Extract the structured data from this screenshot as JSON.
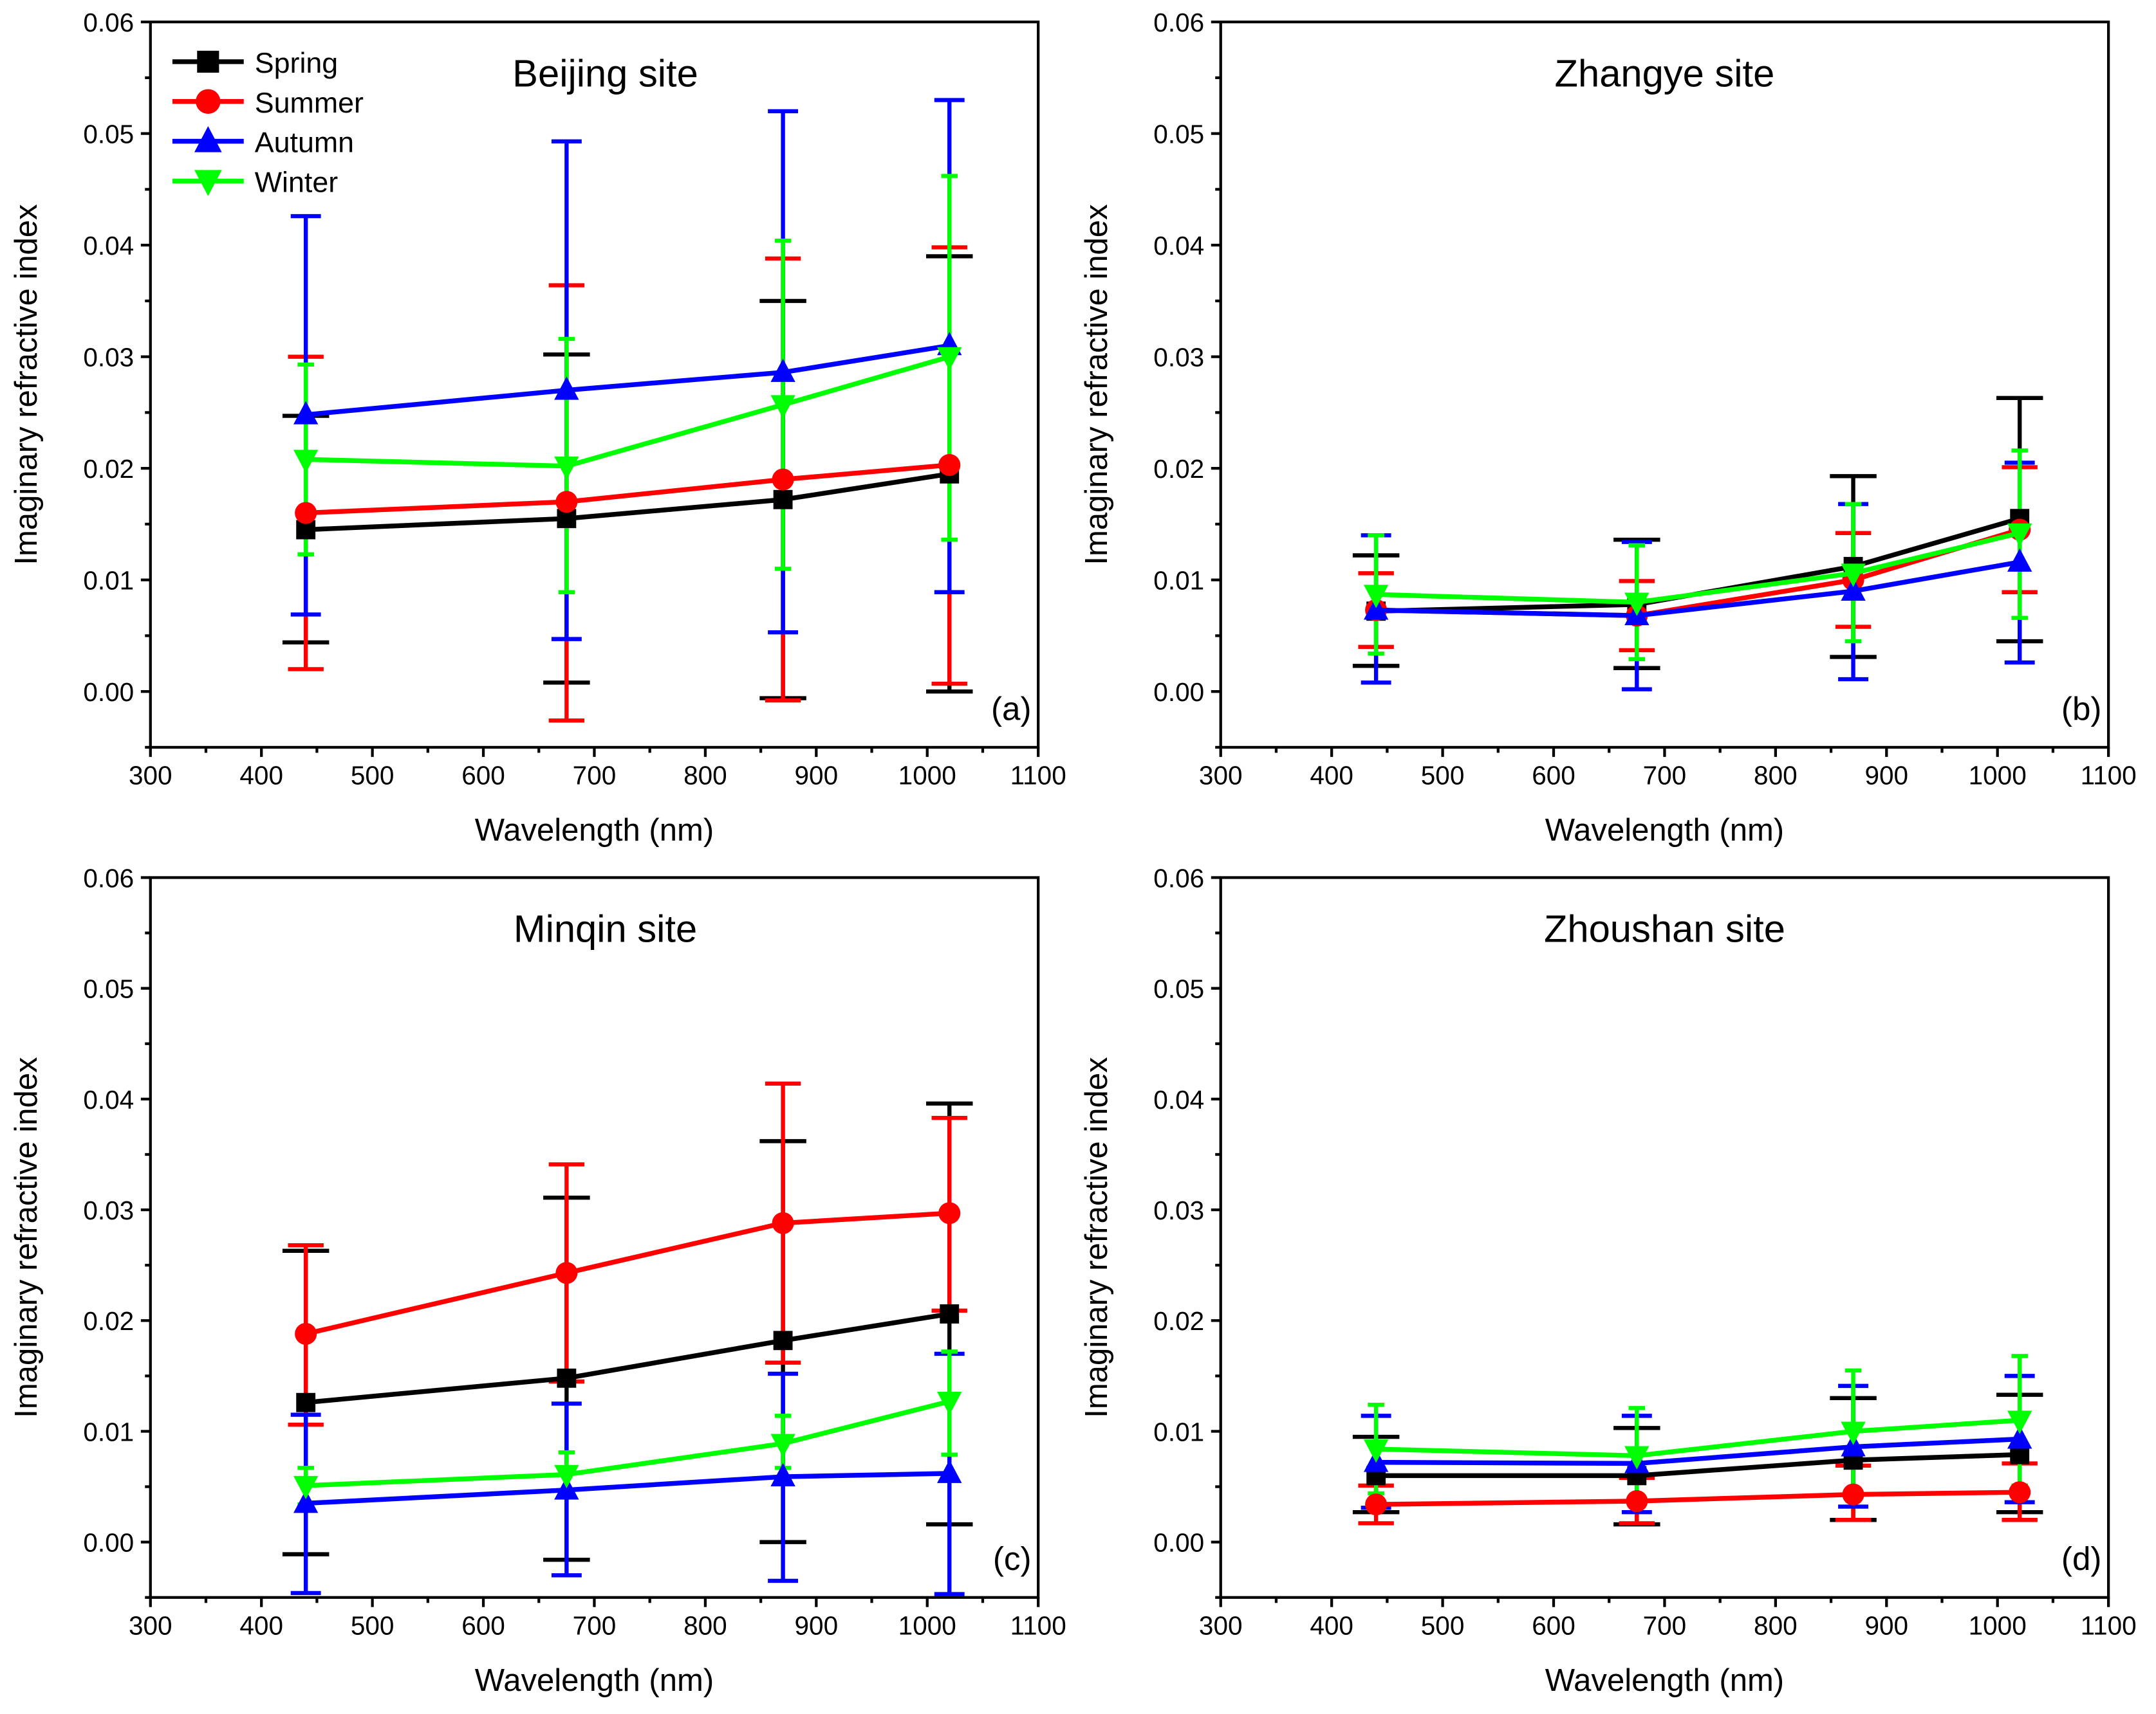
{
  "chart_data": [
    {
      "type": "line",
      "panel_label": "(a)",
      "title": "Beijing site",
      "xlabel": "Wavelength (nm)",
      "ylabel": "Imaginary refractive index",
      "xlim": [
        300,
        1100
      ],
      "ylim": [
        -0.005,
        0.06
      ],
      "xticks": [
        "300",
        "400",
        "500",
        "600",
        "700",
        "800",
        "900",
        "1000",
        "1100"
      ],
      "yticks": [
        "0.00",
        "0.01",
        "0.02",
        "0.03",
        "0.04",
        "0.05",
        "0.06"
      ],
      "x": [
        440,
        675,
        870,
        1020
      ],
      "legend": {
        "placement": "top-left",
        "entries": [
          "Spring",
          "Summer",
          "Autumn",
          "Winter"
        ]
      },
      "series": [
        {
          "name": "Spring",
          "color": "#000000",
          "marker": "square",
          "values": [
            0.0145,
            0.0155,
            0.0172,
            0.0195
          ],
          "err_low": [
            0.0044,
            0.0008,
            -0.0006,
            0.0
          ],
          "err_high": [
            0.0247,
            0.0302,
            0.035,
            0.039
          ]
        },
        {
          "name": "Summer",
          "color": "#ff0000",
          "marker": "circle",
          "values": [
            0.016,
            0.017,
            0.019,
            0.0203
          ],
          "err_low": [
            0.002,
            -0.0026,
            -0.0008,
            0.0007
          ],
          "err_high": [
            0.03,
            0.0364,
            0.0388,
            0.0398
          ]
        },
        {
          "name": "Autumn",
          "color": "#0000ff",
          "marker": "triangle-up",
          "values": [
            0.0248,
            0.027,
            0.0286,
            0.031
          ],
          "err_low": [
            0.0069,
            0.0047,
            0.0053,
            0.0089
          ],
          "err_high": [
            0.0426,
            0.0493,
            0.052,
            0.053
          ]
        },
        {
          "name": "Winter",
          "color": "#00ff00",
          "marker": "triangle-down",
          "values": [
            0.0208,
            0.0202,
            0.0257,
            0.03
          ],
          "err_low": [
            0.0123,
            0.0089,
            0.011,
            0.0136
          ],
          "err_high": [
            0.0293,
            0.0316,
            0.0404,
            0.0462
          ]
        }
      ]
    },
    {
      "type": "line",
      "panel_label": "(b)",
      "title": "Zhangye site",
      "xlabel": "Wavelength (nm)",
      "ylabel": "Imaginary refractive index",
      "xlim": [
        300,
        1100
      ],
      "ylim": [
        -0.005,
        0.06
      ],
      "xticks": [
        "300",
        "400",
        "500",
        "600",
        "700",
        "800",
        "900",
        "1000",
        "1100"
      ],
      "yticks": [
        "0.00",
        "0.01",
        "0.02",
        "0.03",
        "0.04",
        "0.05",
        "0.06"
      ],
      "x": [
        440,
        675,
        870,
        1020
      ],
      "series": [
        {
          "name": "Spring",
          "color": "#000000",
          "marker": "square",
          "values": [
            0.0072,
            0.0078,
            0.0112,
            0.0155
          ],
          "err_low": [
            0.0023,
            0.0021,
            0.0031,
            0.0045
          ],
          "err_high": [
            0.0122,
            0.0136,
            0.0193,
            0.0263
          ]
        },
        {
          "name": "Summer",
          "color": "#ff0000",
          "marker": "circle",
          "values": [
            0.0073,
            0.0068,
            0.01,
            0.0145
          ],
          "err_low": [
            0.004,
            0.0037,
            0.0058,
            0.0089
          ],
          "err_high": [
            0.0106,
            0.0099,
            0.0142,
            0.0201
          ]
        },
        {
          "name": "Autumn",
          "color": "#0000ff",
          "marker": "triangle-up",
          "values": [
            0.0073,
            0.0068,
            0.009,
            0.0116
          ],
          "err_low": [
            0.0008,
            0.0002,
            0.0011,
            0.0026
          ],
          "err_high": [
            0.014,
            0.0134,
            0.0168,
            0.0205
          ]
        },
        {
          "name": "Winter",
          "color": "#00ff00",
          "marker": "triangle-down",
          "values": [
            0.0087,
            0.008,
            0.0106,
            0.0142
          ],
          "err_low": [
            0.0034,
            0.0029,
            0.0045,
            0.0066
          ],
          "err_high": [
            0.014,
            0.0131,
            0.0168,
            0.0216
          ]
        }
      ]
    },
    {
      "type": "line",
      "panel_label": "(c)",
      "title": "Minqin site",
      "xlabel": "Wavelength (nm)",
      "ylabel": "Imaginary refractive index",
      "xlim": [
        300,
        1100
      ],
      "ylim": [
        -0.005,
        0.06
      ],
      "xticks": [
        "300",
        "400",
        "500",
        "600",
        "700",
        "800",
        "900",
        "1000",
        "1100"
      ],
      "yticks": [
        "0.00",
        "0.01",
        "0.02",
        "0.03",
        "0.04",
        "0.05",
        "0.06"
      ],
      "x": [
        440,
        675,
        870,
        1020
      ],
      "series": [
        {
          "name": "Spring",
          "color": "#000000",
          "marker": "square",
          "values": [
            0.0126,
            0.0148,
            0.0182,
            0.0206
          ],
          "err_low": [
            -0.0011,
            -0.0016,
            0.0,
            0.0016
          ],
          "err_high": [
            0.0263,
            0.0311,
            0.0362,
            0.0396
          ]
        },
        {
          "name": "Summer",
          "color": "#ff0000",
          "marker": "circle",
          "values": [
            0.0188,
            0.0243,
            0.0288,
            0.0297
          ],
          "err_low": [
            0.0106,
            0.0145,
            0.0162,
            0.0209
          ],
          "err_high": [
            0.0268,
            0.0341,
            0.0414,
            0.0383
          ]
        },
        {
          "name": "Autumn",
          "color": "#0000ff",
          "marker": "triangle-up",
          "values": [
            0.0035,
            0.0047,
            0.0059,
            0.0062
          ],
          "err_low": [
            -0.0046,
            -0.003,
            -0.0035,
            -0.0047
          ],
          "err_high": [
            0.0115,
            0.0125,
            0.0152,
            0.017
          ]
        },
        {
          "name": "Winter",
          "color": "#00ff00",
          "marker": "triangle-down",
          "values": [
            0.0051,
            0.0061,
            0.0089,
            0.0127
          ],
          "err_low": [
            0.0034,
            0.0041,
            0.0067,
            0.0079
          ],
          "err_high": [
            0.0067,
            0.0081,
            0.0114,
            0.0172
          ]
        }
      ]
    },
    {
      "type": "line",
      "panel_label": "(d)",
      "title": "Zhoushan site",
      "xlabel": "Wavelength (nm)",
      "ylabel": "Imaginary refractive index",
      "xlim": [
        300,
        1100
      ],
      "ylim": [
        -0.005,
        0.06
      ],
      "xticks": [
        "300",
        "400",
        "500",
        "600",
        "700",
        "800",
        "900",
        "1000",
        "1100"
      ],
      "yticks": [
        "0.00",
        "0.01",
        "0.02",
        "0.03",
        "0.04",
        "0.05",
        "0.06"
      ],
      "x": [
        440,
        675,
        870,
        1020
      ],
      "series": [
        {
          "name": "Spring",
          "color": "#000000",
          "marker": "square",
          "values": [
            0.006,
            0.006,
            0.0074,
            0.0079
          ],
          "err_low": [
            0.0027,
            0.0016,
            0.002,
            0.0027
          ],
          "err_high": [
            0.0095,
            0.0103,
            0.013,
            0.0133
          ]
        },
        {
          "name": "Summer",
          "color": "#ff0000",
          "marker": "circle",
          "values": [
            0.0034,
            0.0037,
            0.0043,
            0.0045
          ],
          "err_low": [
            0.0017,
            0.0017,
            0.002,
            0.002
          ],
          "err_high": [
            0.0051,
            0.0058,
            0.0069,
            0.0071
          ]
        },
        {
          "name": "Autumn",
          "color": "#0000ff",
          "marker": "triangle-up",
          "values": [
            0.0072,
            0.0071,
            0.0086,
            0.0093
          ],
          "err_low": [
            0.0031,
            0.0027,
            0.0032,
            0.0036
          ],
          "err_high": [
            0.0114,
            0.0114,
            0.0141,
            0.015
          ]
        },
        {
          "name": "Winter",
          "color": "#00ff00",
          "marker": "triangle-down",
          "values": [
            0.0084,
            0.0078,
            0.01,
            0.011
          ],
          "err_low": [
            0.0044,
            0.0037,
            0.0045,
            0.0051
          ],
          "err_high": [
            0.0124,
            0.0121,
            0.0155,
            0.0168
          ]
        }
      ]
    }
  ]
}
